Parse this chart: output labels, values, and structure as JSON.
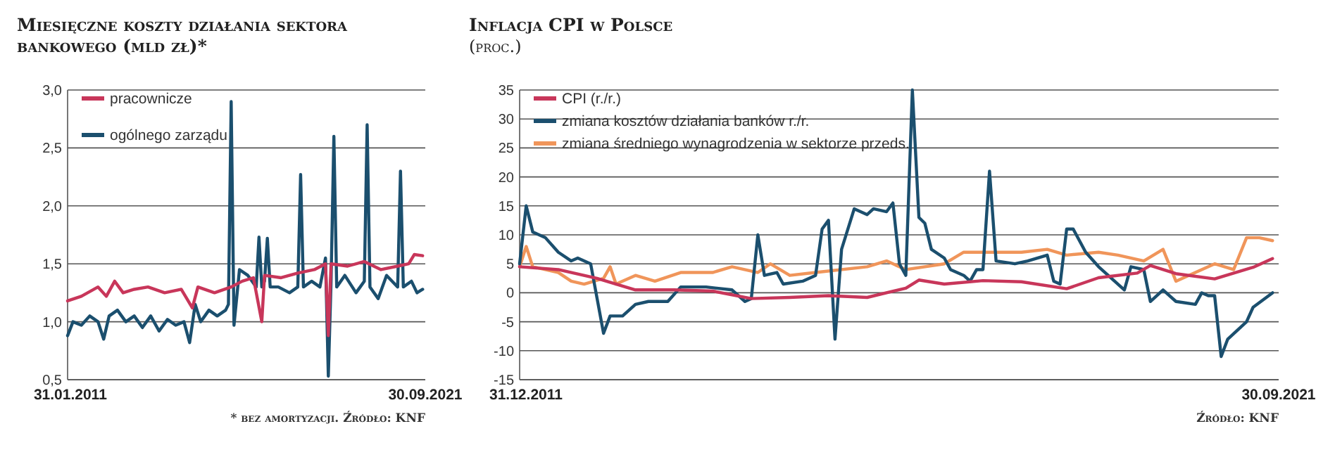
{
  "chart_data": [
    {
      "type": "line",
      "title": "Miesięczne koszty działania sektora bankowego (mld zł)*",
      "annotations": [
        "* bez amortyzacji. Źródło: KNF"
      ],
      "xlim": [
        "2011-01",
        "2021-09-30"
      ],
      "xticks": [
        {
          "value": "2011-01-31",
          "label": "31.01.2011"
        },
        {
          "value": "2021-09-30",
          "label": "30.09.2021"
        }
      ],
      "ylim": [
        0.5,
        3.0
      ],
      "yticks": [
        {
          "value": 0.5,
          "label": "0,5"
        },
        {
          "value": 1.0,
          "label": "1,0"
        },
        {
          "value": 1.5,
          "label": "1,5"
        },
        {
          "value": 2.0,
          "label": "2,0"
        },
        {
          "value": 2.5,
          "label": "2,5"
        },
        {
          "value": 3.0,
          "label": "3,0"
        }
      ],
      "grid": "y",
      "legend": "top left",
      "marker": "none",
      "line_style": "solid",
      "series": [
        {
          "name": "pracownicze",
          "color": "#c8365a",
          "x": [
            "2011-01",
            "2011-06",
            "2011-12",
            "2012-03",
            "2012-06",
            "2012-09",
            "2013-01",
            "2013-06",
            "2013-12",
            "2014-06",
            "2014-10",
            "2014-12",
            "2015-06",
            "2015-12",
            "2016-04",
            "2016-08",
            "2016-11",
            "2016-12",
            "2017-06",
            "2017-12",
            "2018-06",
            "2018-10",
            "2018-11",
            "2018-12",
            "2019-06",
            "2019-12",
            "2020-06",
            "2020-12",
            "2021-04",
            "2021-06",
            "2021-09"
          ],
          "values": [
            1.18,
            1.22,
            1.3,
            1.22,
            1.35,
            1.25,
            1.28,
            1.3,
            1.25,
            1.28,
            1.12,
            1.3,
            1.25,
            1.3,
            1.35,
            1.38,
            1.0,
            1.4,
            1.38,
            1.42,
            1.45,
            1.5,
            0.88,
            1.5,
            1.48,
            1.52,
            1.45,
            1.48,
            1.5,
            1.58,
            1.57
          ]
        },
        {
          "name": "ogólnego zarządu",
          "color": "#1b4f6e",
          "x": [
            "2011-01",
            "2011-03",
            "2011-06",
            "2011-09",
            "2011-12",
            "2012-02",
            "2012-04",
            "2012-07",
            "2012-10",
            "2013-01",
            "2013-04",
            "2013-07",
            "2013-10",
            "2014-01",
            "2014-04",
            "2014-07",
            "2014-09",
            "2014-11",
            "2015-01",
            "2015-04",
            "2015-07",
            "2015-10",
            "2015-11",
            "2015-12",
            "2016-01",
            "2016-03",
            "2016-06",
            "2016-09",
            "2016-10",
            "2016-11",
            "2016-12",
            "2017-01",
            "2017-02",
            "2017-05",
            "2017-09",
            "2017-12",
            "2018-01",
            "2018-02",
            "2018-05",
            "2018-08",
            "2018-10",
            "2018-11",
            "2018-12",
            "2019-01",
            "2019-02",
            "2019-05",
            "2019-09",
            "2019-12",
            "2020-01",
            "2020-02",
            "2020-05",
            "2020-08",
            "2020-12",
            "2021-01",
            "2021-02",
            "2021-05",
            "2021-07",
            "2021-09"
          ],
          "values": [
            0.88,
            1.0,
            0.97,
            1.05,
            1.0,
            0.85,
            1.05,
            1.1,
            1.0,
            1.05,
            0.95,
            1.05,
            0.92,
            1.02,
            0.97,
            1.0,
            0.82,
            1.15,
            1.0,
            1.1,
            1.05,
            1.1,
            1.15,
            2.9,
            0.97,
            1.45,
            1.4,
            1.3,
            1.73,
            1.3,
            1.35,
            1.72,
            1.3,
            1.3,
            1.25,
            1.3,
            2.27,
            1.3,
            1.35,
            1.3,
            1.55,
            0.53,
            1.35,
            2.6,
            1.3,
            1.4,
            1.25,
            1.35,
            2.7,
            1.3,
            1.2,
            1.4,
            1.3,
            2.3,
            1.3,
            1.35,
            1.25,
            1.28
          ]
        }
      ]
    },
    {
      "type": "line",
      "title": "Inflacja CPI w Polsce",
      "subtitle": "(proc.)",
      "annotations": [
        "Źródło: KNF"
      ],
      "xlim": [
        "2011-12",
        "2021-09-30"
      ],
      "xticks": [
        {
          "value": "2011-12-31",
          "label": "31.12.2011"
        },
        {
          "value": "2021-09-30",
          "label": "30.09.2021"
        }
      ],
      "ylim": [
        -15,
        35
      ],
      "yticks": [
        -15,
        -10,
        -5,
        0,
        5,
        10,
        15,
        20,
        25,
        30,
        35
      ],
      "grid": "y",
      "legend": "top left",
      "marker": "none",
      "line_style": "solid",
      "series": [
        {
          "name": "CPI (r./r.)",
          "color": "#c8365a",
          "x": [
            "2011-12",
            "2012-06",
            "2012-12",
            "2013-06",
            "2013-12",
            "2014-06",
            "2014-12",
            "2015-06",
            "2015-12",
            "2016-06",
            "2016-12",
            "2017-02",
            "2017-06",
            "2017-12",
            "2018-06",
            "2019-01",
            "2019-06",
            "2019-12",
            "2020-02",
            "2020-06",
            "2020-12",
            "2021-06",
            "2021-09"
          ],
          "values": [
            4.5,
            4,
            2.5,
            0.5,
            0.5,
            0.3,
            -1,
            -0.8,
            -0.5,
            -0.8,
            0.8,
            2.2,
            1.5,
            2.1,
            1.9,
            0.7,
            2.6,
            3.4,
            4.7,
            3.3,
            2.4,
            4.4,
            5.9
          ]
        },
        {
          "name": "zmiana kosztów działania banków r./r.",
          "color": "#1b4f6e",
          "x": [
            "2011-12",
            "2012-01",
            "2012-02",
            "2012-04",
            "2012-06",
            "2012-08",
            "2012-09",
            "2012-11",
            "2013-01",
            "2013-02",
            "2013-04",
            "2013-06",
            "2013-08",
            "2013-11",
            "2014-01",
            "2014-05",
            "2014-09",
            "2014-11",
            "2014-12",
            "2015-01",
            "2015-02",
            "2015-04",
            "2015-05",
            "2015-08",
            "2015-10",
            "2015-11",
            "2015-12",
            "2016-01",
            "2016-02",
            "2016-04",
            "2016-06",
            "2016-07",
            "2016-09",
            "2016-10",
            "2016-11",
            "2016-12",
            "2017-01",
            "2017-02",
            "2017-03",
            "2017-04",
            "2017-06",
            "2017-07",
            "2017-09",
            "2017-10",
            "2017-11",
            "2017-12",
            "2018-01",
            "2018-02",
            "2018-05",
            "2018-07",
            "2018-10",
            "2018-11",
            "2018-12",
            "2019-01",
            "2019-02",
            "2019-04",
            "2019-06",
            "2019-08",
            "2019-10",
            "2019-11",
            "2020-01",
            "2020-02",
            "2020-04",
            "2020-06",
            "2020-09",
            "2020-10",
            "2020-11",
            "2020-12",
            "2021-01",
            "2021-02",
            "2021-05",
            "2021-06",
            "2021-09"
          ],
          "values": [
            5,
            15,
            10.5,
            9.5,
            7,
            5.5,
            6,
            5,
            -7,
            -4,
            -4,
            -2,
            -1.5,
            -1.5,
            1,
            1,
            0.5,
            -1.5,
            -1,
            10,
            3,
            3.5,
            1.5,
            2,
            3,
            11,
            12.5,
            -8,
            7.5,
            14.5,
            13.5,
            14.5,
            14,
            15.5,
            5,
            3,
            35,
            13,
            12,
            7.5,
            6,
            4,
            3,
            2,
            4,
            4,
            21,
            5.5,
            5,
            5.5,
            6.5,
            2,
            1.5,
            11,
            11,
            7,
            4.5,
            2.5,
            0.5,
            4.5,
            4,
            -1.5,
            0.5,
            -1.5,
            -2,
            0,
            -0.5,
            -0.5,
            -11,
            -8,
            -5,
            -2.5,
            0
          ]
        },
        {
          "name": "zmiana średniego wynagrodzenia w sektorze przeds.",
          "color": "#f0955a",
          "x": [
            "2011-12",
            "2012-01",
            "2012-02",
            "2012-06",
            "2012-08",
            "2012-10",
            "2013-01",
            "2013-02",
            "2013-03",
            "2013-06",
            "2013-09",
            "2014-01",
            "2014-06",
            "2014-09",
            "2015-01",
            "2015-03",
            "2015-06",
            "2015-10",
            "2016-06",
            "2016-09",
            "2016-12",
            "2017-06",
            "2017-09",
            "2018-01",
            "2018-06",
            "2018-10",
            "2019-01",
            "2019-06",
            "2019-09",
            "2020-01",
            "2020-04",
            "2020-06",
            "2020-09",
            "2020-12",
            "2021-03",
            "2021-05",
            "2021-07",
            "2021-09"
          ],
          "values": [
            4.5,
            8,
            4.5,
            3.5,
            2,
            1.5,
            2.5,
            4.5,
            1.5,
            3,
            2,
            3.5,
            3.5,
            4.5,
            3.5,
            5,
            3,
            3.5,
            4.5,
            5.5,
            4,
            5,
            7,
            7,
            7,
            7.5,
            6.5,
            7,
            6.5,
            5.5,
            7.5,
            2,
            3.5,
            5,
            4,
            9.5,
            9.5,
            9
          ]
        }
      ]
    }
  ]
}
